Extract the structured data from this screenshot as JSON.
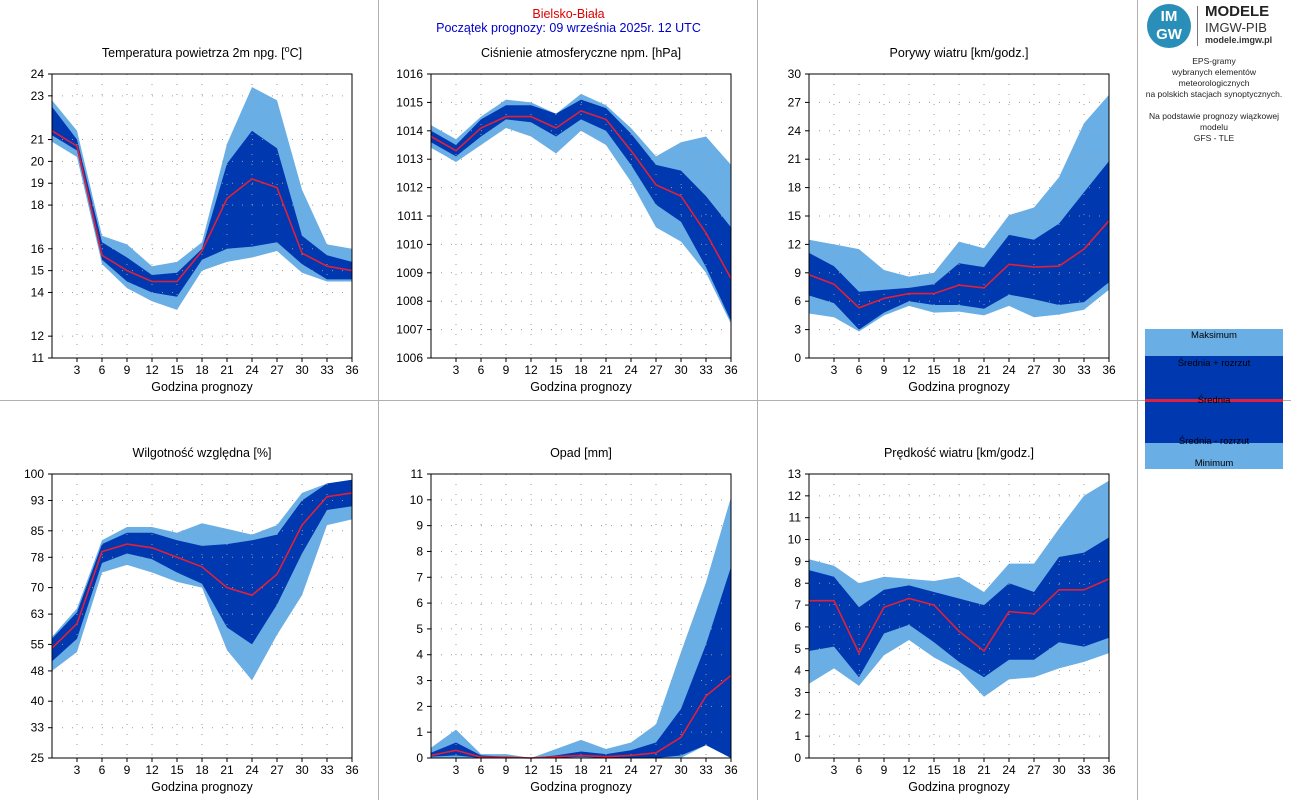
{
  "header": {
    "city": "Bielsko-Biała",
    "forecast_start": "Początek prognozy: 09 września 2025r. 12 UTC"
  },
  "logo": {
    "badge_top": "IM",
    "badge_bottom": "GW",
    "title": "MODELE",
    "subtitle": "IMGW-PIB",
    "url": "modele.imgw.pl"
  },
  "description": {
    "line1": "EPS-gramy",
    "line2": "wybranych elementów meteorologicznych",
    "line3": "na polskich stacjach  synoptycznych.",
    "line4": "Na podstawie prognozy wiązkowej modelu",
    "line5": "GFS - TLE"
  },
  "legend": {
    "max": "Maksimum",
    "mean_plus": "Średnia + rozrzut",
    "mean": "Średnia",
    "mean_minus": "Średnia - rozrzut",
    "min": "Minimum"
  },
  "colors": {
    "outer_band": "#6aaee6",
    "inner_band": "#0038b0",
    "mean_line": "#e0203a",
    "grid": "#9a9a9a",
    "divider": "#b0b0b0"
  },
  "chart_data": [
    {
      "type": "area",
      "title": "Temperatura powietrza 2m npg. [°C]",
      "xlabel": "Godzina prognozy",
      "x": [
        0,
        3,
        6,
        9,
        12,
        15,
        18,
        21,
        24,
        27,
        30,
        33,
        36
      ],
      "xticks": [
        3,
        6,
        9,
        12,
        15,
        18,
        21,
        24,
        27,
        30,
        33,
        36
      ],
      "ylim": [
        11,
        24
      ],
      "yticks": [
        11,
        12,
        14,
        15,
        16,
        18,
        19,
        20,
        21,
        23,
        24
      ],
      "min": [
        20.9,
        20.2,
        15.3,
        14.2,
        13.6,
        13.2,
        15.0,
        15.4,
        15.6,
        15.9,
        14.9,
        14.5,
        14.5
      ],
      "low": [
        21.2,
        20.5,
        15.5,
        14.5,
        14.0,
        13.8,
        15.5,
        16.0,
        16.1,
        16.3,
        15.3,
        14.6,
        14.6
      ],
      "mean": [
        21.4,
        20.7,
        15.7,
        15.0,
        14.5,
        14.5,
        15.9,
        18.3,
        19.2,
        18.8,
        15.8,
        15.2,
        15.0
      ],
      "high": [
        22.5,
        21.0,
        16.3,
        15.6,
        14.8,
        14.9,
        16.0,
        19.9,
        21.4,
        20.6,
        16.6,
        15.7,
        15.4
      ],
      "max": [
        22.8,
        21.4,
        16.6,
        16.2,
        15.2,
        15.4,
        16.3,
        20.8,
        23.4,
        22.8,
        18.7,
        16.2,
        16.0
      ]
    },
    {
      "type": "area",
      "title": "Ciśnienie atmosferyczne npm. [hPa]",
      "xlabel": "Godzina prognozy",
      "x": [
        0,
        3,
        6,
        9,
        12,
        15,
        18,
        21,
        24,
        27,
        30,
        33,
        36
      ],
      "xticks": [
        3,
        6,
        9,
        12,
        15,
        18,
        21,
        24,
        27,
        30,
        33,
        36
      ],
      "ylim": [
        1006,
        1016
      ],
      "yticks": [
        1006,
        1007,
        1008,
        1009,
        1010,
        1011,
        1012,
        1013,
        1014,
        1015,
        1016
      ],
      "min": [
        1013.4,
        1012.9,
        1013.5,
        1014.1,
        1013.8,
        1013.2,
        1014.0,
        1013.5,
        1012.2,
        1010.6,
        1010.1,
        1009.0,
        1007.2
      ],
      "low": [
        1013.6,
        1013.1,
        1013.8,
        1014.4,
        1014.3,
        1013.8,
        1014.4,
        1014.0,
        1012.8,
        1011.4,
        1010.8,
        1009.2,
        1007.3
      ],
      "mean": [
        1013.8,
        1013.3,
        1014.1,
        1014.5,
        1014.5,
        1014.1,
        1014.7,
        1014.4,
        1013.3,
        1012.1,
        1011.7,
        1010.4,
        1008.8
      ],
      "high": [
        1014.0,
        1013.5,
        1014.4,
        1014.9,
        1014.9,
        1014.6,
        1015.1,
        1014.8,
        1013.9,
        1012.8,
        1012.6,
        1011.7,
        1010.6
      ],
      "max": [
        1014.2,
        1013.7,
        1014.5,
        1015.1,
        1015.0,
        1014.6,
        1015.3,
        1014.9,
        1014.1,
        1013.1,
        1013.6,
        1013.8,
        1012.8
      ]
    },
    {
      "type": "area",
      "title": "Porywy wiatru [km/godz.]",
      "xlabel": "Godzina prognozy",
      "x": [
        0,
        3,
        6,
        9,
        12,
        15,
        18,
        21,
        24,
        27,
        30,
        33,
        36
      ],
      "xticks": [
        3,
        6,
        9,
        12,
        15,
        18,
        21,
        24,
        27,
        30,
        33,
        36
      ],
      "ylim": [
        0,
        30
      ],
      "yticks": [
        0,
        3,
        6,
        9,
        12,
        15,
        18,
        21,
        24,
        27,
        30
      ],
      "min": [
        4.7,
        4.3,
        2.8,
        4.5,
        5.5,
        4.8,
        4.9,
        4.5,
        5.5,
        4.3,
        4.6,
        5.1,
        7.2
      ],
      "low": [
        6.6,
        5.8,
        3.0,
        4.8,
        6.0,
        5.6,
        5.6,
        5.2,
        6.7,
        6.2,
        5.6,
        5.9,
        8.0
      ],
      "mean": [
        8.8,
        7.8,
        5.3,
        6.3,
        6.8,
        6.8,
        7.7,
        7.4,
        9.9,
        9.6,
        9.7,
        11.5,
        14.5
      ],
      "high": [
        11.1,
        9.7,
        7.0,
        7.2,
        7.4,
        7.8,
        10.0,
        9.6,
        13.0,
        12.5,
        14.2,
        17.5,
        20.8
      ],
      "max": [
        12.5,
        12.0,
        11.5,
        9.3,
        8.6,
        9.0,
        12.3,
        11.6,
        15.1,
        15.9,
        19.1,
        24.8,
        27.8
      ]
    },
    {
      "type": "area",
      "title": "Wilgotność względna [%]",
      "xlabel": "Godzina prognozy",
      "x": [
        0,
        3,
        6,
        9,
        12,
        15,
        18,
        21,
        24,
        27,
        30,
        33,
        36
      ],
      "xticks": [
        3,
        6,
        9,
        12,
        15,
        18,
        21,
        24,
        27,
        30,
        33,
        36
      ],
      "ylim": [
        25,
        100
      ],
      "yticks": [
        25,
        33,
        40,
        48,
        55,
        63,
        70,
        78,
        85,
        93,
        100
      ],
      "min": [
        48.0,
        53.0,
        74.0,
        76.0,
        74.0,
        71.5,
        70.0,
        53.5,
        45.5,
        57.5,
        68.0,
        86.5,
        88.0
      ],
      "low": [
        50.5,
        56.5,
        76.5,
        79.0,
        77.5,
        74.0,
        71.0,
        59.5,
        55.0,
        65.5,
        79.0,
        90.5,
        91.5
      ],
      "mean": [
        54.0,
        60.5,
        79.5,
        81.5,
        80.5,
        78.0,
        75.5,
        70.0,
        68.0,
        73.5,
        86.5,
        94.0,
        95.0
      ],
      "high": [
        56.5,
        63.5,
        81.5,
        84.5,
        84.5,
        82.5,
        81.0,
        81.5,
        82.5,
        84.0,
        93.0,
        97.5,
        98.5
      ],
      "max": [
        57.0,
        64.5,
        82.5,
        86.0,
        86.0,
        84.5,
        87.0,
        85.5,
        84.0,
        86.5,
        95.0,
        97.5,
        98.5
      ]
    },
    {
      "type": "area",
      "title": "Opad [mm]",
      "xlabel": "Godzina prognozy",
      "x": [
        0,
        3,
        6,
        9,
        12,
        15,
        18,
        21,
        24,
        27,
        30,
        33,
        36
      ],
      "xticks": [
        3,
        6,
        9,
        12,
        15,
        18,
        21,
        24,
        27,
        30,
        33,
        36
      ],
      "ylim": [
        0,
        11
      ],
      "yticks": [
        0,
        1,
        2,
        3,
        4,
        5,
        6,
        7,
        8,
        9,
        10,
        11
      ],
      "min": [
        0.0,
        0.0,
        0.0,
        0.0,
        0.0,
        0.0,
        0.0,
        0.0,
        0.0,
        0.0,
        0.0,
        0.5,
        0.0
      ],
      "low": [
        0.05,
        0.1,
        0.0,
        0.0,
        0.0,
        0.0,
        0.05,
        0.0,
        0.0,
        0.0,
        0.1,
        0.5,
        0.0
      ],
      "mean": [
        0.1,
        0.3,
        0.03,
        0.03,
        0.0,
        0.05,
        0.1,
        0.05,
        0.1,
        0.2,
        0.8,
        2.4,
        3.2
      ],
      "high": [
        0.2,
        0.6,
        0.1,
        0.05,
        0.0,
        0.1,
        0.25,
        0.15,
        0.3,
        0.6,
        1.9,
        4.4,
        7.4
      ],
      "max": [
        0.4,
        1.1,
        0.15,
        0.15,
        0.0,
        0.35,
        0.7,
        0.35,
        0.6,
        1.3,
        4.1,
        6.8,
        10.1
      ]
    },
    {
      "type": "area",
      "title": "Prędkość wiatru [km/godz.]",
      "xlabel": "Godzina prognozy",
      "x": [
        0,
        3,
        6,
        9,
        12,
        15,
        18,
        21,
        24,
        27,
        30,
        33,
        36
      ],
      "xticks": [
        3,
        6,
        9,
        12,
        15,
        18,
        21,
        24,
        27,
        30,
        33,
        36
      ],
      "ylim": [
        0,
        13
      ],
      "yticks": [
        0,
        1,
        2,
        3,
        4,
        5,
        6,
        7,
        8,
        9,
        10,
        11,
        12,
        13
      ],
      "min": [
        3.4,
        4.1,
        3.3,
        4.7,
        5.4,
        4.6,
        4.0,
        2.8,
        3.6,
        3.7,
        4.1,
        4.4,
        4.8
      ],
      "low": [
        4.9,
        5.1,
        3.7,
        5.7,
        6.1,
        5.3,
        4.4,
        3.7,
        4.5,
        4.5,
        5.3,
        5.1,
        5.5
      ],
      "mean": [
        7.2,
        7.2,
        4.8,
        6.9,
        7.3,
        7.0,
        5.8,
        4.9,
        6.7,
        6.6,
        7.7,
        7.7,
        8.2
      ],
      "high": [
        8.6,
        8.3,
        6.9,
        7.7,
        7.9,
        7.6,
        7.3,
        7.0,
        8.0,
        7.6,
        9.2,
        9.4,
        10.1
      ],
      "max": [
        9.1,
        8.8,
        8.0,
        8.3,
        8.2,
        8.1,
        8.3,
        7.6,
        8.9,
        8.9,
        10.5,
        12.0,
        12.7
      ]
    }
  ]
}
